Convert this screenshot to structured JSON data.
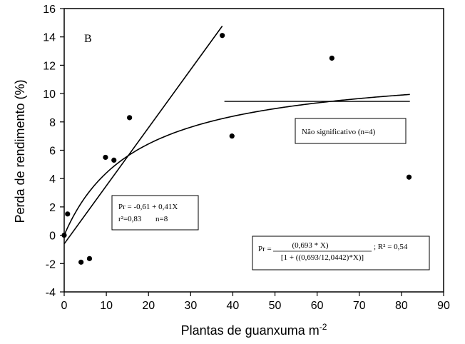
{
  "chart_data": {
    "type": "scatter",
    "panel_label": "B",
    "xlabel": "Plantas de guanxuma m",
    "xlabel_sup": "-2",
    "ylabel": "Perda de rendimento (%)",
    "xlim": [
      0,
      90
    ],
    "ylim": [
      -4,
      16
    ],
    "x_ticks": [
      0,
      10,
      20,
      30,
      40,
      50,
      60,
      70,
      80,
      90
    ],
    "y_ticks": [
      -4,
      -2,
      0,
      2,
      4,
      6,
      8,
      10,
      12,
      14,
      16
    ],
    "points": [
      {
        "x": 0,
        "y": 0.0
      },
      {
        "x": 0.8,
        "y": 1.5
      },
      {
        "x": 4,
        "y": -1.9
      },
      {
        "x": 6,
        "y": -1.65
      },
      {
        "x": 9.8,
        "y": 5.5
      },
      {
        "x": 11.8,
        "y": 5.3
      },
      {
        "x": 15.5,
        "y": 8.3
      },
      {
        "x": 37.5,
        "y": 14.1
      },
      {
        "x": 39.8,
        "y": 7.0
      },
      {
        "x": 63.5,
        "y": 12.5
      },
      {
        "x": 81.8,
        "y": 4.1
      }
    ],
    "fits": {
      "linear": {
        "intercept": -0.61,
        "slope": 0.41,
        "x_range": [
          0,
          37.5
        ]
      },
      "hyperbolic": {
        "i": 0.693,
        "a": 12.0442,
        "x_range": [
          0,
          82
        ]
      },
      "flat": {
        "y": 9.45,
        "x_range": [
          38,
          82
        ]
      }
    },
    "annotations": {
      "linear": {
        "line1": "Pr = -0,61 + 0,41X",
        "line2a": "r²=0,83",
        "line2b": "n=8"
      },
      "nonsig": "Não significativo (n=4)",
      "hyperbolic": {
        "prefix": "Pr =",
        "numerator": "(0,693 * X)",
        "denominator": "[1 + ((0,693/12,0442)*X)]",
        "r2": "; R² = 0,54"
      }
    }
  }
}
